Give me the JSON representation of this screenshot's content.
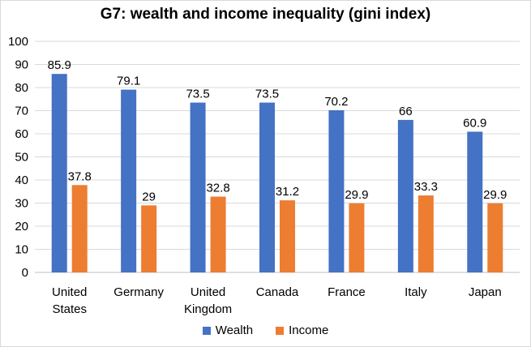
{
  "chart_data": {
    "type": "bar",
    "title": "G7: wealth and income inequality (gini index)",
    "xlabel": "",
    "ylabel": "",
    "ylim": [
      0,
      100
    ],
    "ytick_step": 10,
    "grid": true,
    "legend_position": "bottom",
    "categories": [
      [
        "United",
        "States"
      ],
      [
        "Germany"
      ],
      [
        "United",
        "Kingdom"
      ],
      [
        "Canada"
      ],
      [
        "France"
      ],
      [
        "Italy"
      ],
      [
        "Japan"
      ]
    ],
    "series": [
      {
        "name": "Wealth",
        "color": "#4472C4",
        "values": [
          85.9,
          79.1,
          73.5,
          73.5,
          70.2,
          66,
          60.9
        ]
      },
      {
        "name": "Income",
        "color": "#ED7D31",
        "values": [
          37.8,
          29,
          32.8,
          31.2,
          29.9,
          33.3,
          29.9
        ]
      }
    ]
  }
}
